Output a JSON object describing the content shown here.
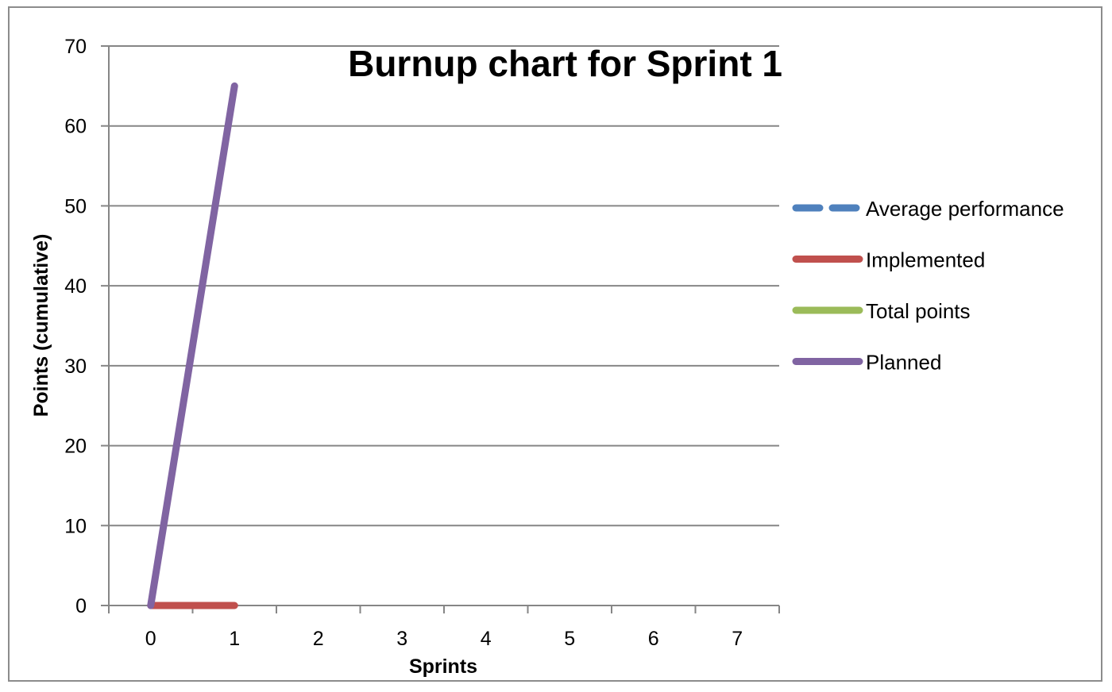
{
  "chart_data": {
    "type": "line",
    "title": "Burnup chart for Sprint 1",
    "xlabel": "Sprints",
    "ylabel": "Points (cumulative)",
    "x": [
      0,
      1,
      2,
      3,
      4,
      5,
      6,
      7
    ],
    "xlim": [
      -0.5,
      7.5
    ],
    "ylim": [
      0,
      70
    ],
    "y_ticks": [
      0,
      10,
      20,
      30,
      40,
      50,
      60,
      70
    ],
    "grid": "horizontal",
    "legend_position": "right",
    "series": [
      {
        "name": "Average performance",
        "color": "#4f81bd",
        "dash": true,
        "x": [],
        "values": []
      },
      {
        "name": "Implemented",
        "color": "#c0504d",
        "dash": false,
        "x": [
          0,
          1
        ],
        "values": [
          0,
          0
        ]
      },
      {
        "name": "Total points",
        "color": "#9bbb59",
        "dash": false,
        "x": [],
        "values": []
      },
      {
        "name": "Planned",
        "color": "#8064a2",
        "dash": false,
        "x": [
          0,
          1
        ],
        "values": [
          0,
          65
        ]
      }
    ]
  }
}
